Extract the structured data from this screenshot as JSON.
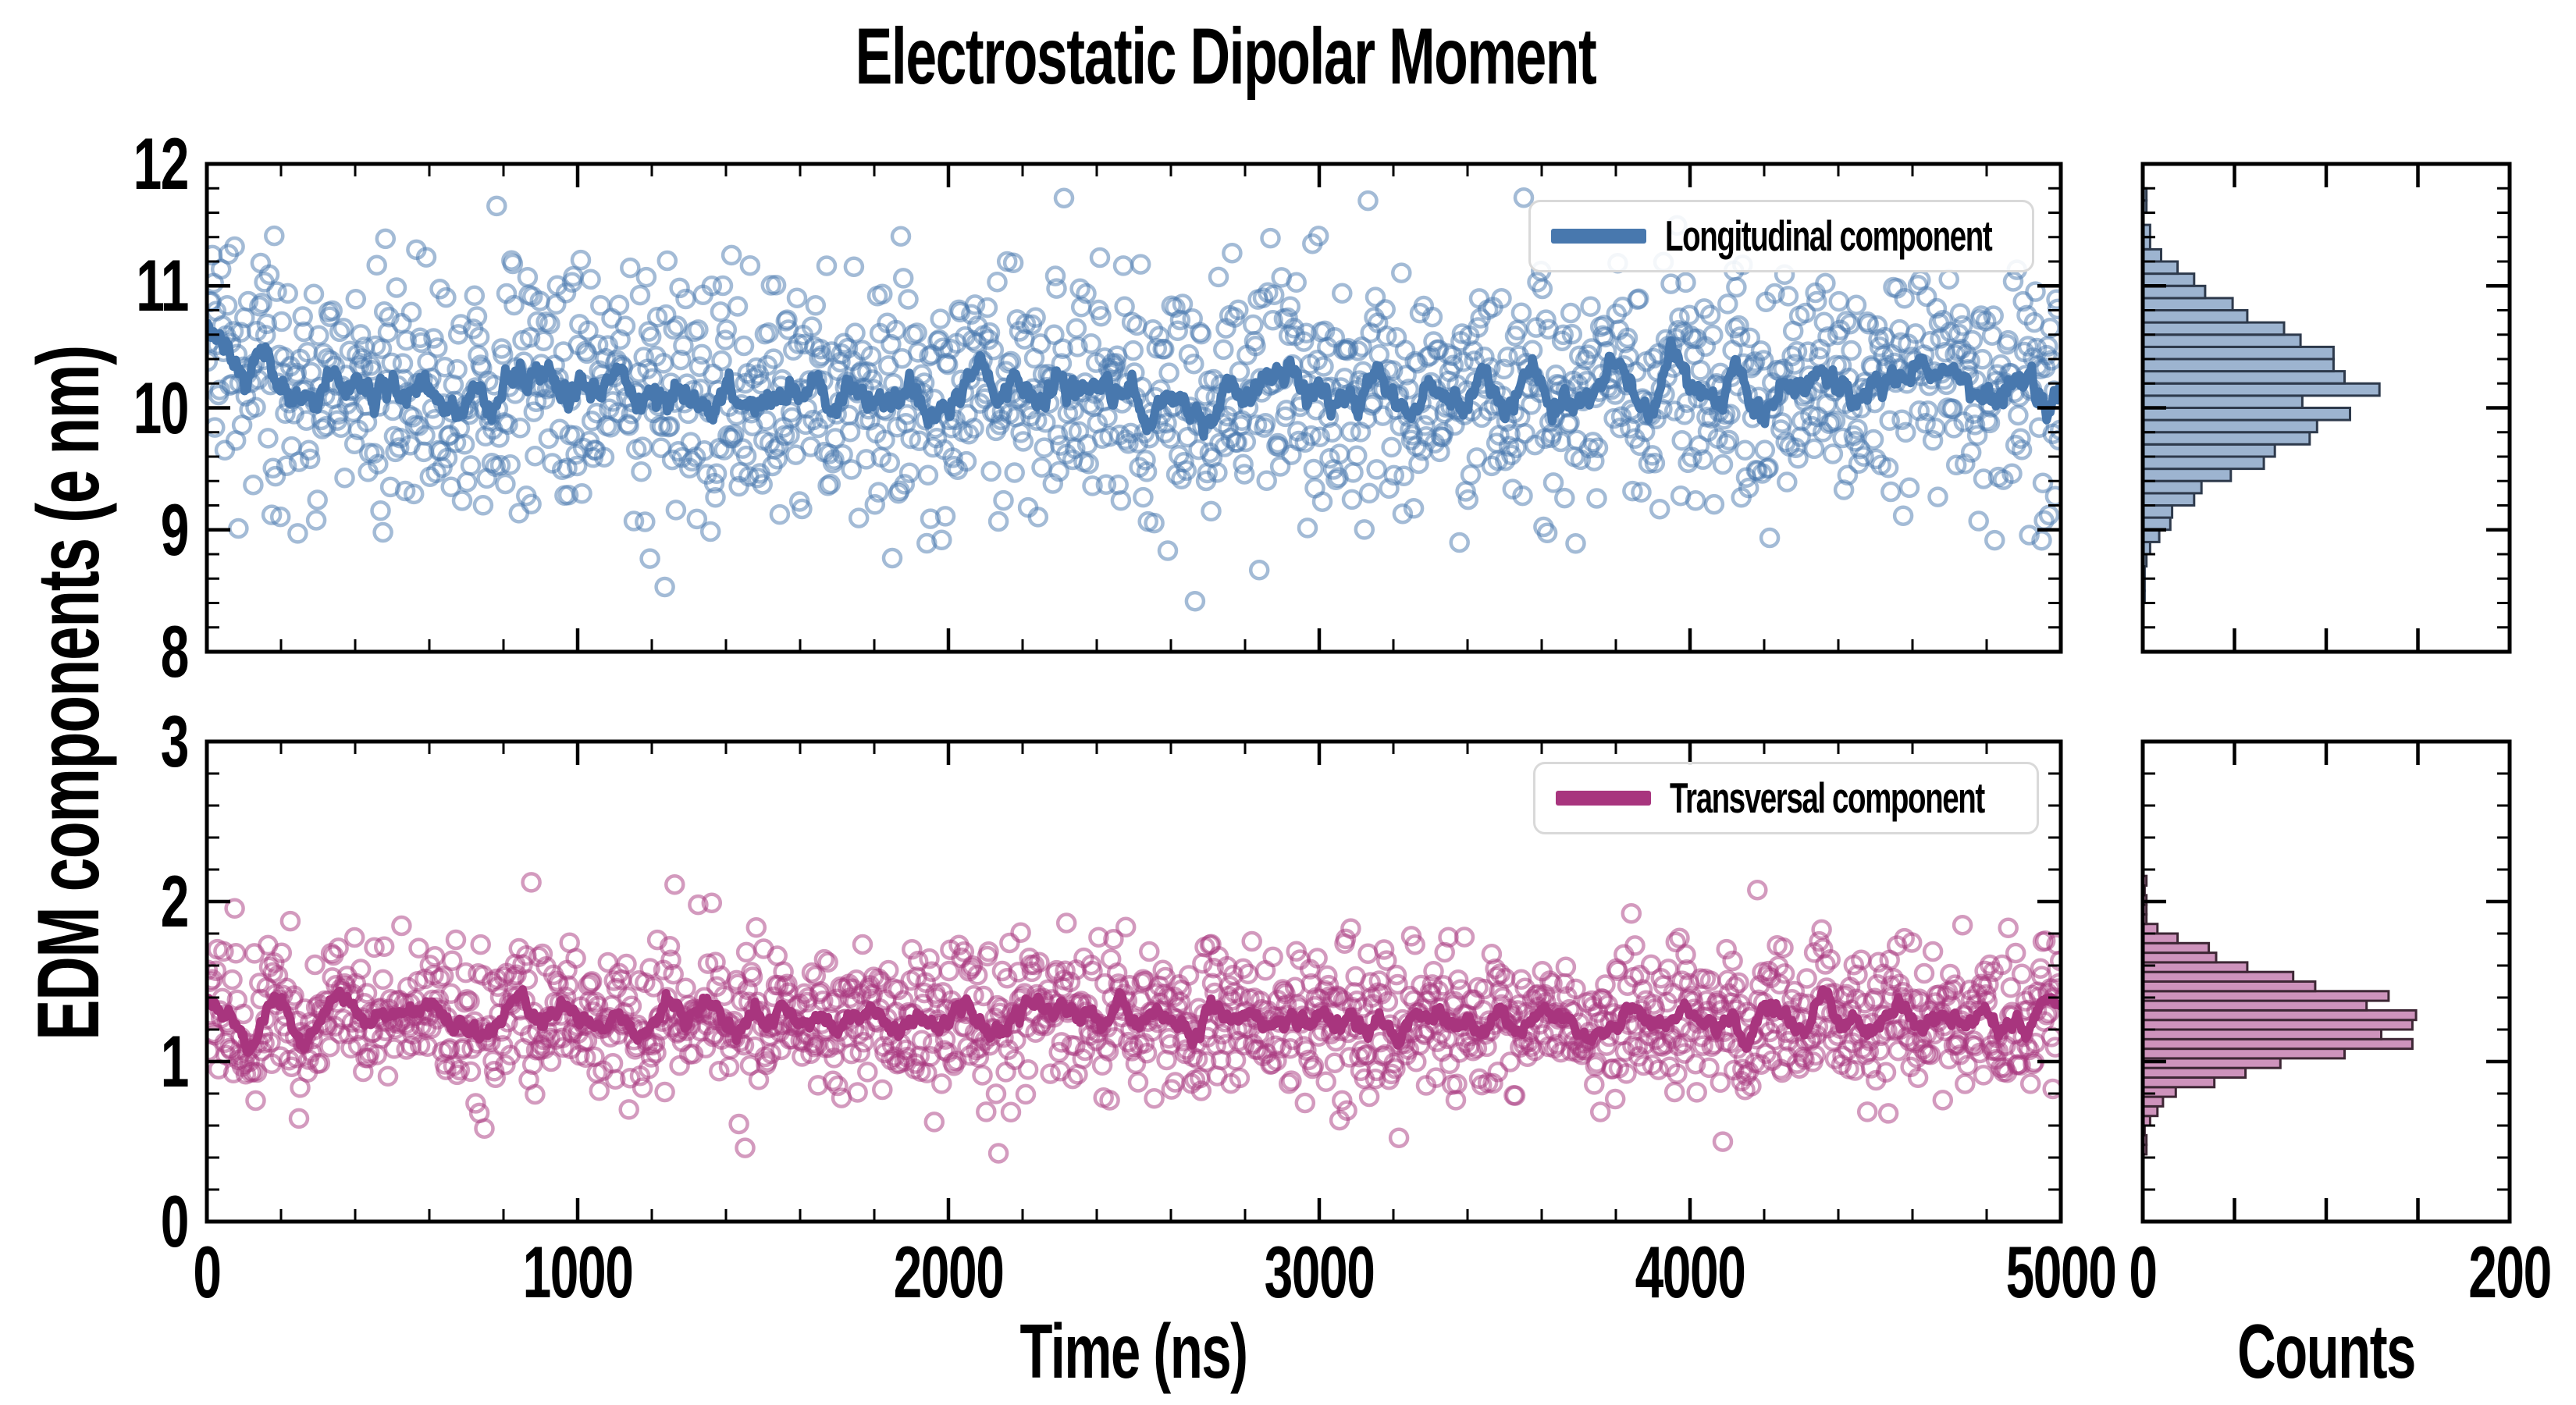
{
  "title": "Electrostatic Dipolar Moment",
  "y_axis_label": "EDM components (e nm)",
  "time_axis_label": "Time (ns)",
  "counts_axis_label": "Counts",
  "legend": {
    "longitudinal": "Longitudinal component",
    "transversal": "Transversal component"
  },
  "colors": {
    "longitudinal_line": "#4878AE",
    "longitudinal_marker": "#4878AE",
    "longitudinal_hist_fill": "#9DB4D0",
    "longitudinal_hist_edge": "#2E3A4C",
    "transversal_line": "#A8357E",
    "transversal_marker": "#A8357E",
    "transversal_hist_fill": "#CE93BC",
    "transversal_hist_edge": "#3E2735",
    "axis": "#000000",
    "legend_border": "#D9D9D9",
    "background": "#FFFFFF"
  },
  "marker_alpha": 0.5,
  "chart_data": [
    {
      "type": "scatter",
      "panel": "top-main",
      "series_name": "Longitudinal component",
      "xlim": [
        0,
        5000
      ],
      "ylim": [
        8,
        12
      ],
      "x_ticks": [
        0,
        1000,
        2000,
        3000,
        4000,
        5000
      ],
      "labeled_x_ticks": [],
      "x_minor_step": 200,
      "y_ticks": [
        8,
        9,
        10,
        11,
        12
      ],
      "labeled_y_ticks": [
        8,
        9,
        10,
        11,
        12
      ],
      "y_minor_step": 0.2,
      "n_points": 1500,
      "y_mean": 10.12,
      "y_std": 0.5,
      "initial_transient_amplitude": 0.55,
      "initial_transient_decay_ns": 130,
      "rolling_mean_window": 15,
      "rolling_mean_level": 10.15,
      "marker": "open-circle",
      "legend_position": "upper right",
      "grid": false,
      "seed": 20
    },
    {
      "type": "scatter",
      "panel": "bottom-main",
      "series_name": "Transversal component",
      "xlim": [
        0,
        5000
      ],
      "ylim": [
        0,
        3
      ],
      "x_ticks": [
        0,
        1000,
        2000,
        3000,
        4000,
        5000
      ],
      "labeled_x_ticks": [
        0,
        1000,
        2000,
        3000,
        4000,
        5000
      ],
      "x_minor_step": 200,
      "y_ticks": [
        0,
        1,
        2,
        3
      ],
      "labeled_y_ticks": [
        0,
        1,
        2,
        3
      ],
      "y_minor_step": 0.2,
      "n_points": 1500,
      "y_mean": 1.27,
      "y_std": 0.24,
      "initial_transient_amplitude": 0,
      "initial_transient_decay_ns": 1,
      "rolling_mean_window": 15,
      "rolling_mean_level": 1.28,
      "marker": "open-circle",
      "legend_position": "upper right",
      "grid": false,
      "seed": 77
    },
    {
      "type": "bar",
      "panel": "top-hist",
      "orientation": "horizontal",
      "series_name": "Longitudinal component distribution",
      "xlabel": "Counts",
      "xlim": [
        0,
        200
      ],
      "x_ticks": [
        0,
        50,
        100,
        150,
        200
      ],
      "labeled_x_ticks": [],
      "ylim": [
        8,
        12
      ],
      "y_ticks": [
        8,
        9,
        10,
        11,
        12
      ],
      "y_minor_step": 0.2,
      "bin_width": 0.1,
      "approx_peak_count": 120,
      "approx_peak_center": 10.15,
      "source_series_index": 0
    },
    {
      "type": "bar",
      "panel": "bottom-hist",
      "orientation": "horizontal",
      "series_name": "Transversal component distribution",
      "xlabel": "Counts",
      "xlim": [
        0,
        200
      ],
      "x_ticks": [
        0,
        50,
        100,
        150,
        200
      ],
      "labeled_x_ticks": [
        0,
        200
      ],
      "ylim": [
        0,
        3
      ],
      "y_ticks": [
        0,
        1,
        2,
        3
      ],
      "y_minor_step": 0.2,
      "bin_width": 0.06,
      "approx_peak_count": 145,
      "approx_peak_center": 1.3,
      "source_series_index": 1
    }
  ]
}
